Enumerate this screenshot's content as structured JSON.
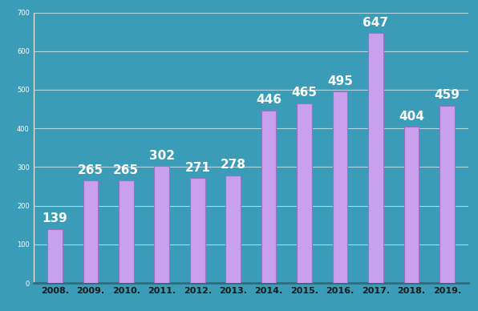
{
  "chart_data": {
    "type": "bar",
    "categories": [
      "2008.",
      "2009.",
      "2010.",
      "2011.",
      "2012.",
      "2013.",
      "2014.",
      "2015.",
      "2016.",
      "2017.",
      "2018.",
      "2019."
    ],
    "values": [
      139,
      265,
      265,
      302,
      271,
      278,
      446,
      465,
      495,
      647,
      404,
      459
    ],
    "color": "#c9a0ec",
    "ylim": [
      0,
      700
    ],
    "yticks": [
      0,
      100,
      200,
      300,
      400,
      500,
      600,
      700
    ],
    "grid": true,
    "data_labels": true
  }
}
